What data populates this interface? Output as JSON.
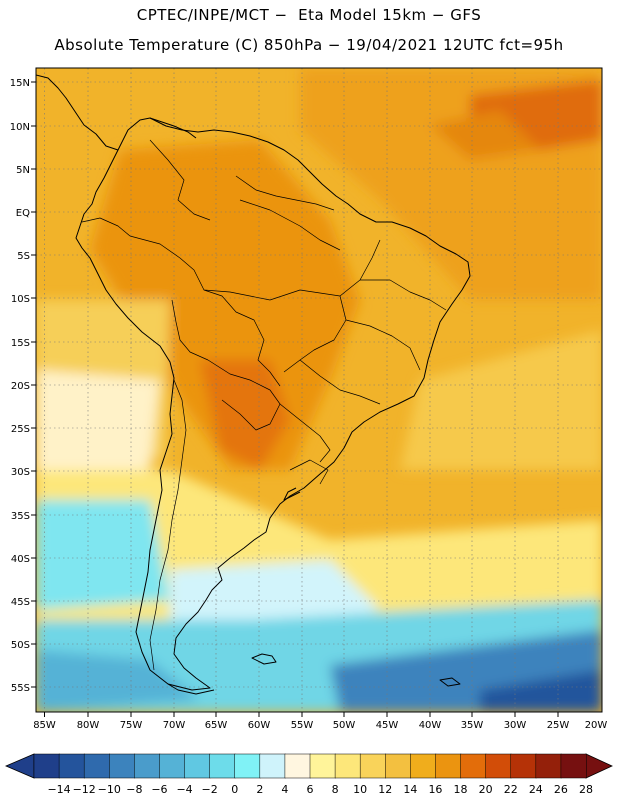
{
  "header": {
    "line1": "CPTEC/INPE/MCT −  Eta Model 15km − GFS",
    "line2": "Absolute Temperature (C) 850hPa − 19/04/2021 12UTC fct=95h"
  },
  "axes": {
    "lat_labels": [
      "15N",
      "10N",
      "5N",
      "EQ",
      "5S",
      "10S",
      "15S",
      "20S",
      "25S",
      "30S",
      "35S",
      "40S",
      "45S",
      "50S",
      "55S"
    ],
    "lon_labels": [
      "85W",
      "80W",
      "75W",
      "70W",
      "65W",
      "60W",
      "55W",
      "50W",
      "45W",
      "40W",
      "35W",
      "30W",
      "25W",
      "20W"
    ]
  },
  "colorbar": {
    "labels": [
      "−14",
      "−12",
      "−10",
      "−8",
      "−6",
      "−4",
      "−2",
      "0",
      "2",
      "4",
      "6",
      "8",
      "10",
      "12",
      "14",
      "16",
      "18",
      "20",
      "22",
      "24",
      "26",
      "28"
    ],
    "colors": [
      "#1f3f8a",
      "#24549c",
      "#2f6aad",
      "#3c83bd",
      "#4a9ccb",
      "#55b2d6",
      "#60c8e2",
      "#6ddcea",
      "#80f2f6",
      "#cff3fb",
      "#fff6e0",
      "#fff49a",
      "#fde77a",
      "#f9d35a",
      "#f3c040",
      "#f0ad1c",
      "#eb9410",
      "#e36d0a",
      "#d24d08",
      "#b53207",
      "#94200a",
      "#761010"
    ]
  }
}
